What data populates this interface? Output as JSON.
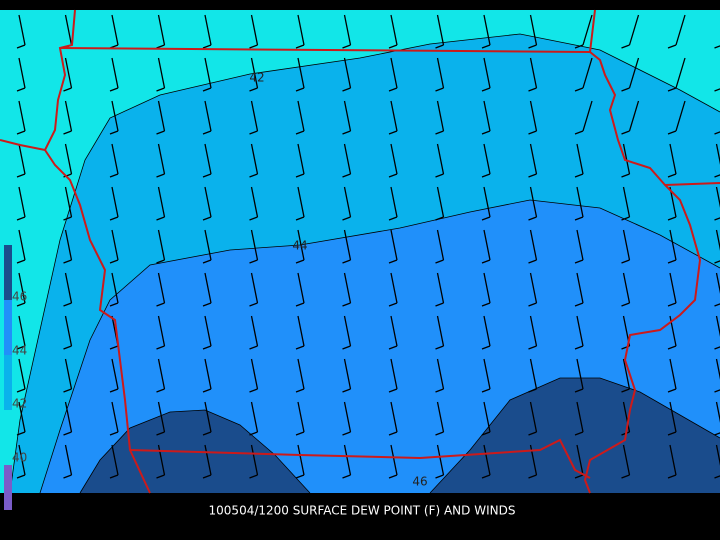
{
  "caption": "100504/1200 SURFACE DEW POINT (F) AND WINDS",
  "contour_labels": [
    42,
    44,
    46
  ],
  "colorbar": {
    "labels": [
      46,
      44,
      42,
      40
    ]
  }
}
